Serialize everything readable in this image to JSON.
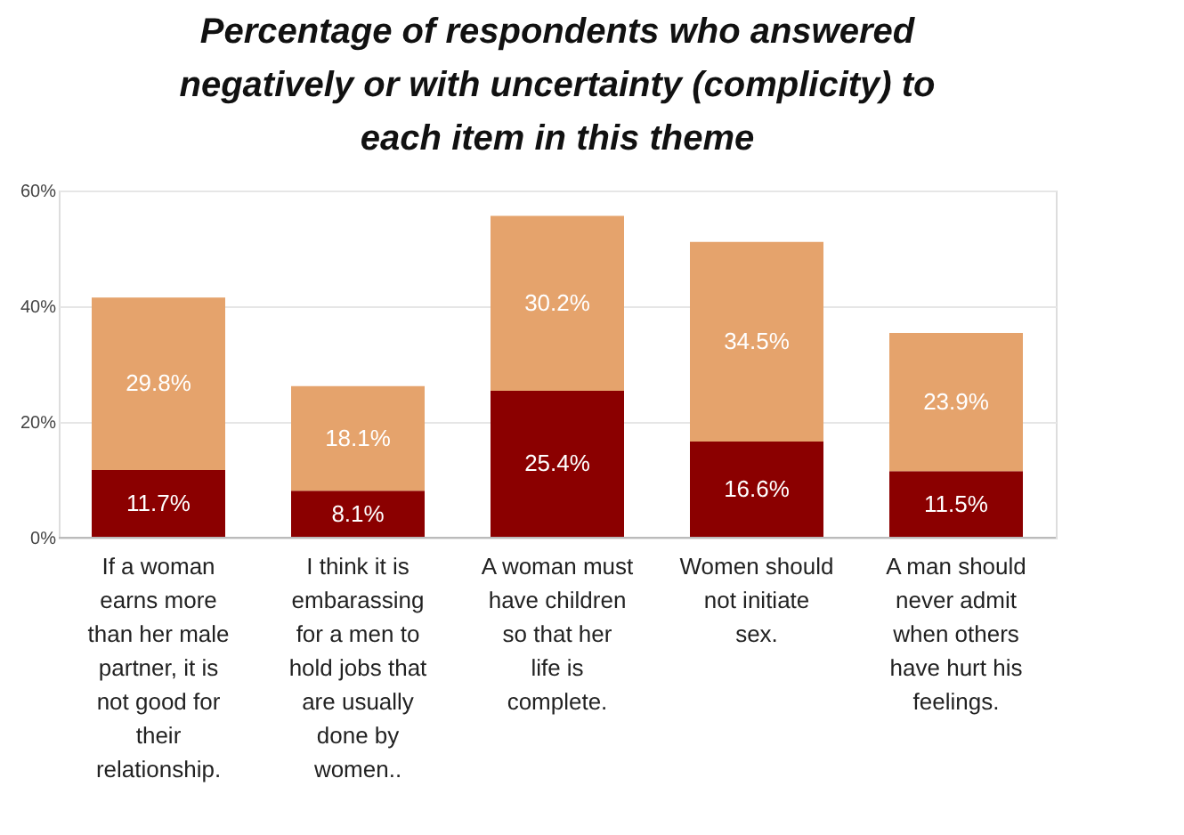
{
  "chart_data": {
    "type": "bar",
    "stacked": true,
    "title": "Percentage of respondents who answered negatively or with uncertainty (complicity) to each item in this theme",
    "categories": [
      "If a woman earns more than her male partner, it is not good for their relationship.",
      "I think it is embarassing for a men to hold jobs that are usually done by women..",
      "A woman must have children so that her life is complete.",
      "Women should not initiate sex.",
      "A man should never admit when others have hurt his feelings."
    ],
    "series": [
      {
        "color": "#8b0000",
        "values": [
          11.7,
          8.1,
          25.4,
          16.6,
          11.5
        ],
        "value_labels": [
          "11.7%",
          "8.1%",
          "25.4%",
          "16.6%",
          "11.5%"
        ]
      },
      {
        "color": "#e5a36c",
        "values": [
          29.8,
          18.1,
          30.2,
          34.5,
          23.9
        ],
        "value_labels": [
          "29.8%",
          "18.1%",
          "30.2%",
          "34.5%",
          "23.9%"
        ]
      }
    ],
    "ylim": [
      0,
      60
    ],
    "yticks": [
      {
        "value": 0,
        "label": "0%"
      },
      {
        "value": 20,
        "label": "20%"
      },
      {
        "value": 40,
        "label": "40%"
      },
      {
        "value": 60,
        "label": "60%"
      }
    ],
    "grid": "y"
  }
}
